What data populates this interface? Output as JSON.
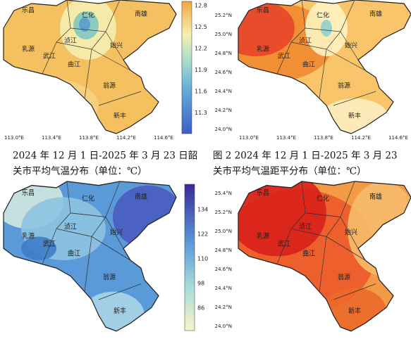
{
  "maps": [
    {
      "places": [
        "乐昌",
        "仁化",
        "南雄",
        "乳源",
        "浈江",
        "武江",
        "曲江",
        "始兴",
        "翁源",
        "新丰"
      ],
      "colorbar": [
        "12.8",
        "12.5",
        "12.2",
        "11.9",
        "11.6",
        "11.3"
      ],
      "lon_labels": [
        "113.0°E",
        "113.4°E",
        "113.8°E",
        "114.2°E",
        "114.6°E"
      ]
    },
    {
      "places": [
        "乐昌",
        "仁化",
        "南雄",
        "乳源",
        "浈江",
        "武江",
        "曲江",
        "始兴",
        "翁源",
        "新丰"
      ],
      "lat_labels": [
        "25.2°N",
        "25.0°N",
        "24.8°N",
        "24.6°N",
        "24.4°N",
        "24.2°N",
        "24.0°N"
      ],
      "lon_labels": [
        "113.0°E",
        "113.4°E",
        "113.8°E",
        "114.2°E",
        "114.6°E"
      ]
    },
    {
      "places": [
        "乐昌",
        "仁化",
        "南雄",
        "乳源",
        "浈江",
        "武江",
        "曲江",
        "始兴",
        "翁源",
        "新丰"
      ],
      "colorbar": [
        "134",
        "122",
        "110",
        "98",
        "86"
      ]
    },
    {
      "places": [
        "乐昌",
        "仁化",
        "南雄",
        "乳源",
        "浈江",
        "武江",
        "曲江",
        "始兴",
        "翁源",
        "新丰"
      ],
      "lat_labels": [
        "25.4°N",
        "25.2°N",
        "25.0°N",
        "24.8°N",
        "24.6°N",
        "24.4°N",
        "24.2°N",
        "24.0°N"
      ]
    }
  ],
  "captions": {
    "left": [
      "2024 年 12 月 1 日-2025 年 3 月 23 日韶",
      "关市平均气温分布（单位：℃）"
    ],
    "right": [
      "图 2  2024 年 12 月 1 日-2025 年 3 月 23",
      "关市平均气温距平分布（单位：℃）"
    ]
  }
}
